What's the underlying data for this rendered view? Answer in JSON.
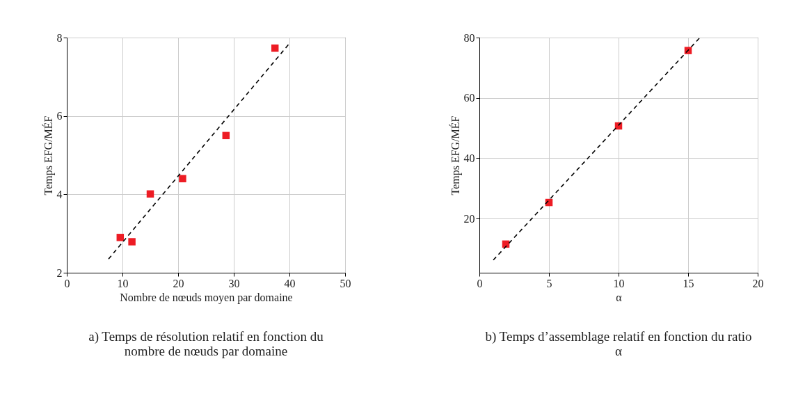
{
  "chart_data": [
    {
      "type": "scatter",
      "xlabel": "Nombre de nœuds moyen par domaine",
      "ylabel": "Temps EFG/MÉF",
      "xlim": [
        0,
        50
      ],
      "ylim": [
        2,
        8
      ],
      "xticks": [
        0,
        10,
        20,
        30,
        40,
        50
      ],
      "yticks": [
        2,
        4,
        6,
        8
      ],
      "grid": true,
      "series": [
        {
          "color": "#ed1c24",
          "marker": "square",
          "x": [
            9.6,
            11.7,
            15.0,
            20.8,
            28.6,
            37.4
          ],
          "values": [
            2.9,
            2.79,
            4.01,
            4.4,
            5.5,
            7.73
          ]
        },
        {
          "type": "line",
          "color": "#000000",
          "line_style": "dashed",
          "marker": "none",
          "x": [
            7.5,
            40
          ],
          "values": [
            2.35,
            7.85
          ]
        }
      ],
      "annotations": [
        "a) Temps de résolution relatif en fonction du nombre de nœuds par domaine"
      ]
    },
    {
      "type": "scatter",
      "xlabel": "α",
      "ylabel": "Temps EFG/MÉF",
      "xlim": [
        0,
        20
      ],
      "ylim": [
        2,
        80
      ],
      "xticks": [
        0,
        5,
        10,
        15,
        20
      ],
      "yticks": [
        20,
        40,
        60,
        80
      ],
      "grid": true,
      "series": [
        {
          "color": "#ed1c24",
          "marker": "square",
          "x": [
            1.9,
            5.0,
            10.0,
            15.0
          ],
          "values": [
            11.5,
            25.3,
            50.7,
            75.7
          ]
        },
        {
          "type": "line",
          "color": "#000000",
          "line_style": "dashed",
          "marker": "none",
          "x": [
            1.0,
            15.85
          ],
          "values": [
            6.2,
            80
          ]
        }
      ],
      "annotations": [
        "b) Temps d’assemblage relatif en fonction du ratio α"
      ]
    }
  ]
}
